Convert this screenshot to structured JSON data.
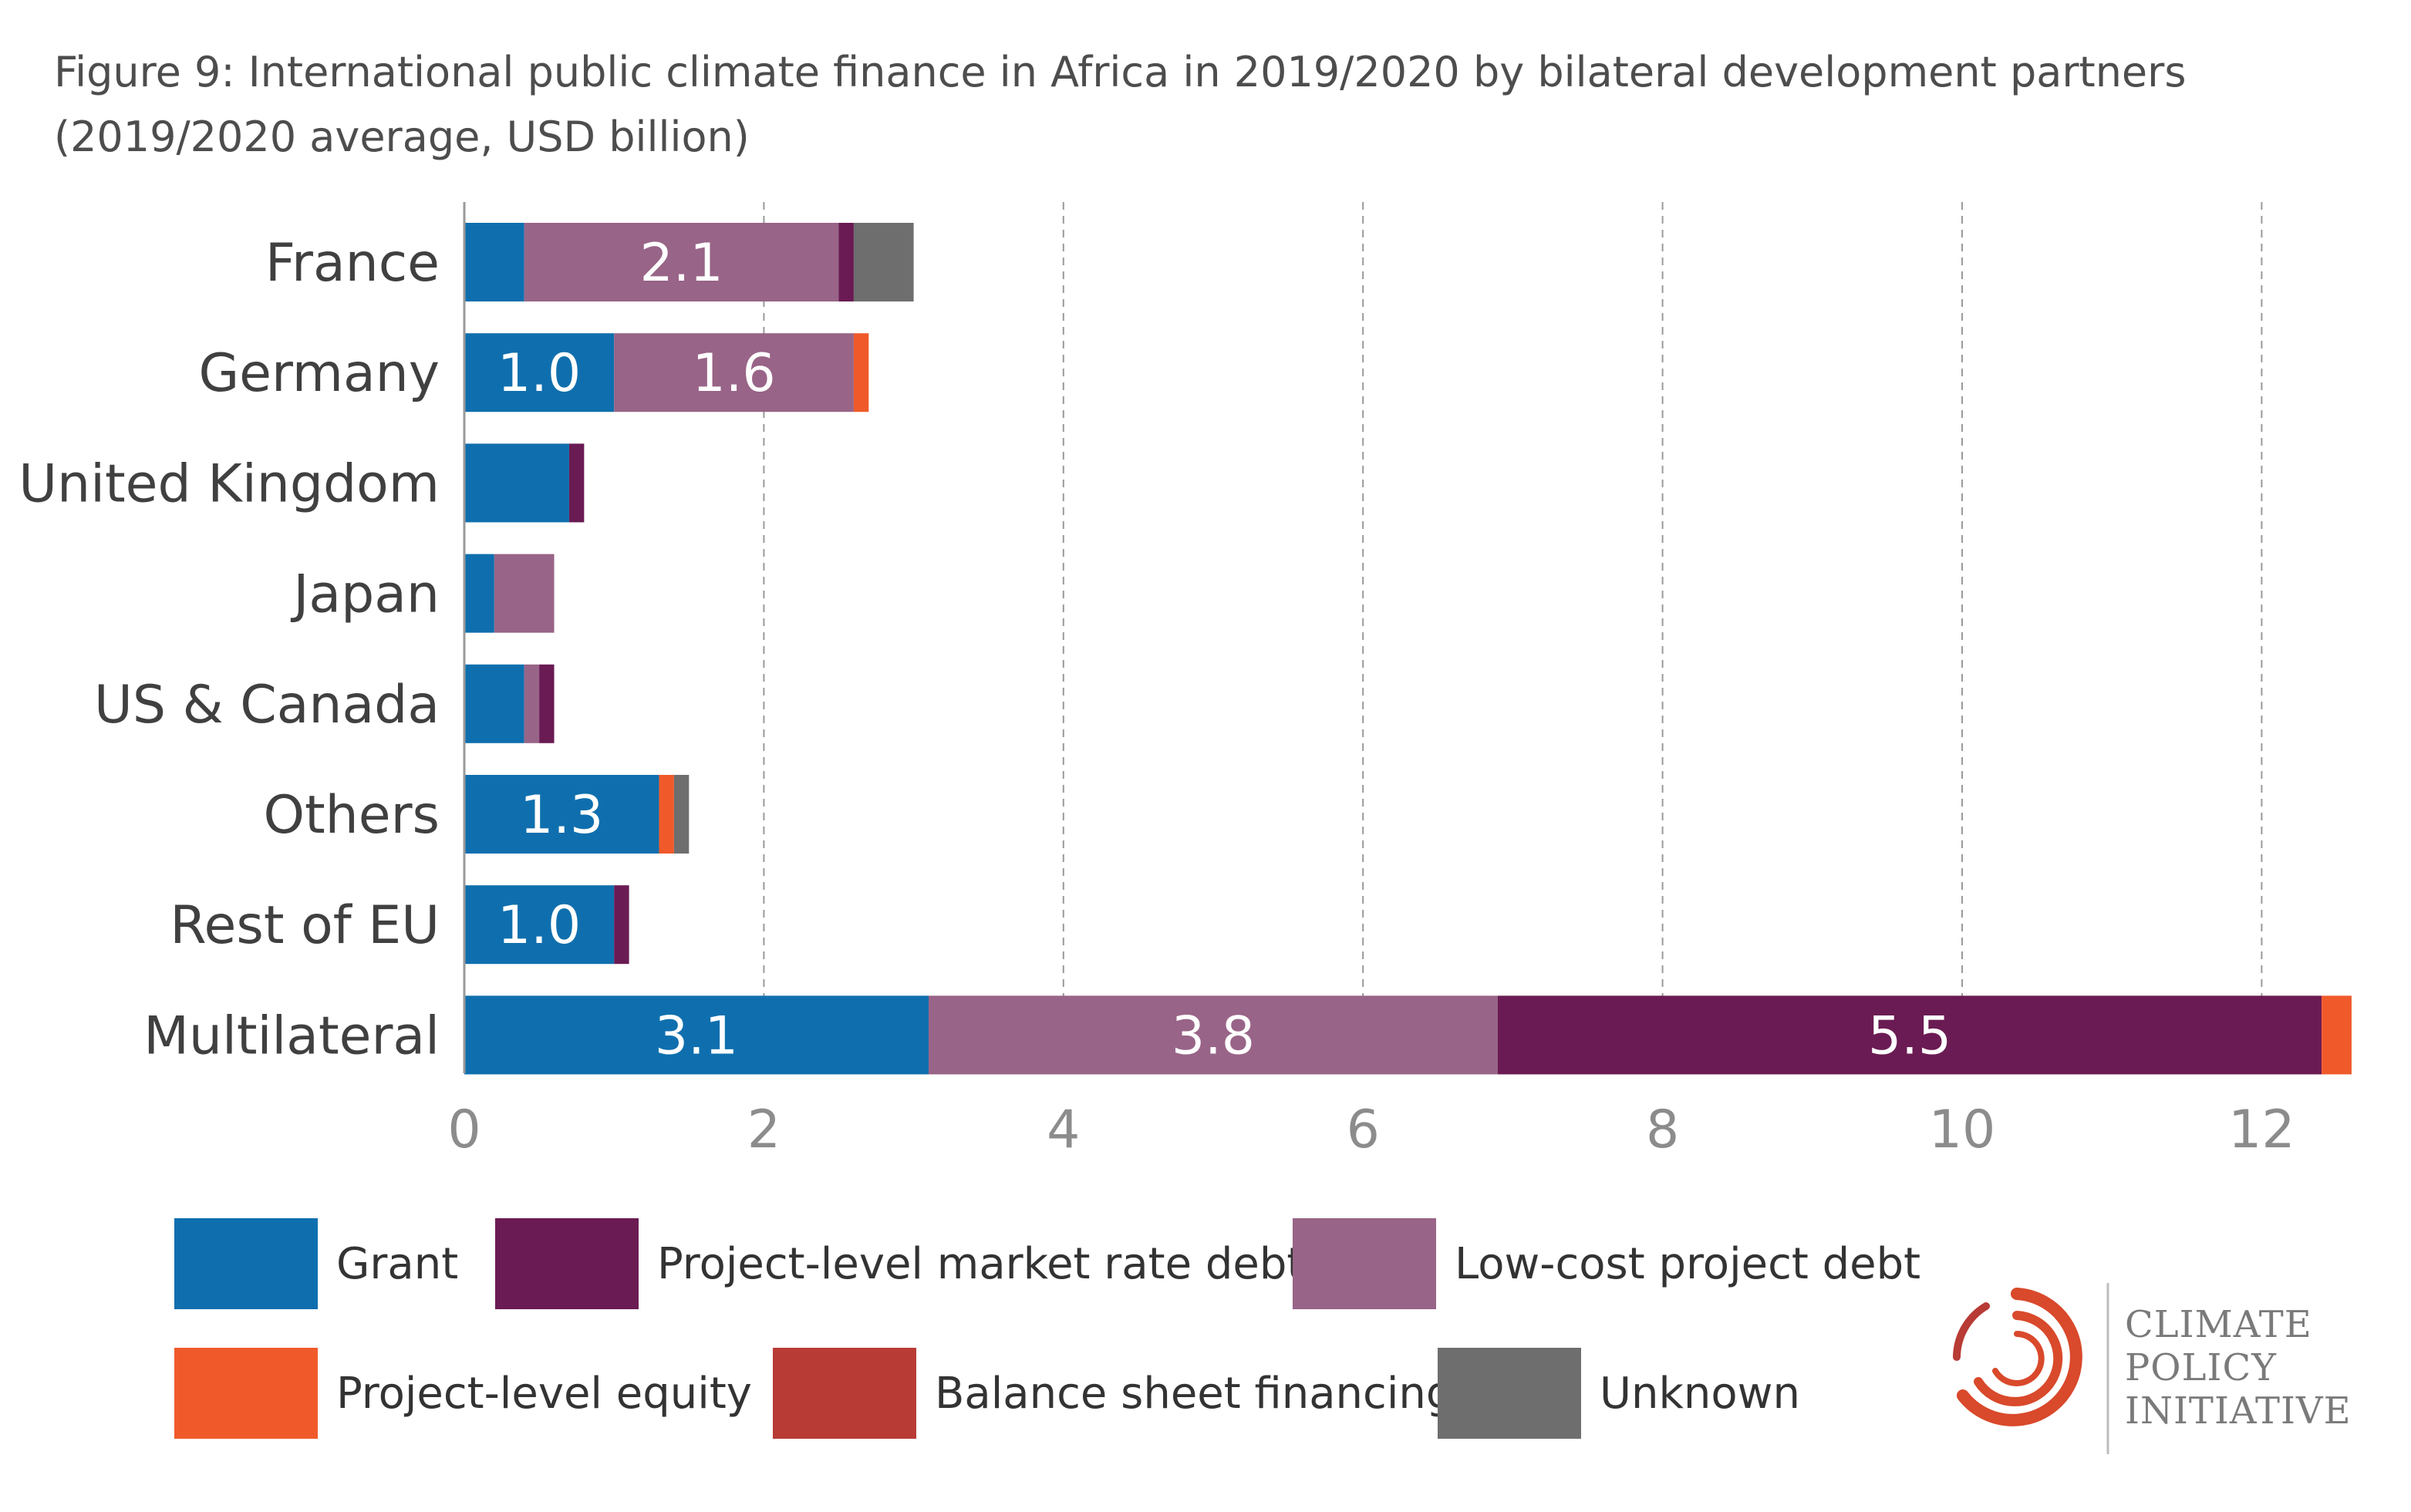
{
  "title_lines": [
    "Figure 9: International public climate finance in Africa in 2019/2020 by bilateral development partners",
    "(2019/2020 average, USD billion)"
  ],
  "logo": {
    "lines": [
      "CLIMATE",
      "POLICY",
      "INITIATIVE"
    ],
    "color": "#d9492b"
  },
  "chart_data": {
    "type": "bar",
    "orientation": "horizontal",
    "stacked": true,
    "categories": [
      "France",
      "Germany",
      "United Kingdom",
      "Japan",
      "US & Canada",
      "Others",
      "Rest of EU",
      "Multilateral"
    ],
    "xlim": [
      0,
      12.6
    ],
    "xticks": [
      0,
      2,
      4,
      6,
      8,
      10,
      12
    ],
    "grid": "vertical-dashed",
    "legend_position": "bottom",
    "series": [
      {
        "name": "Grant",
        "color": "#0f6fae",
        "values": [
          0.4,
          1.0,
          0.7,
          0.2,
          0.4,
          1.3,
          1.0,
          3.1
        ]
      },
      {
        "name": "Low-cost project debt",
        "color": "#986487",
        "values": [
          2.1,
          1.6,
          0.0,
          0.4,
          0.1,
          0.0,
          0.0,
          3.8
        ]
      },
      {
        "name": "Project-level market rate debt",
        "color": "#6a1b53",
        "values": [
          0.1,
          0.0,
          0.1,
          0.0,
          0.1,
          0.0,
          0.1,
          5.5
        ]
      },
      {
        "name": "Project-level equity",
        "color": "#f05a2b",
        "values": [
          0.0,
          0.1,
          0.0,
          0.0,
          0.0,
          0.1,
          0.0,
          0.2
        ]
      },
      {
        "name": "Balance sheet financing",
        "color": "#b83b35",
        "values": [
          0,
          0,
          0,
          0,
          0,
          0,
          0,
          0
        ]
      },
      {
        "name": "Unknown",
        "color": "#6e6e6e",
        "values": [
          0.4,
          0.0,
          0.0,
          0.0,
          0.0,
          0.1,
          0.0,
          0.0
        ]
      }
    ],
    "data_labels": [
      {
        "category": "France",
        "series": "Low-cost project debt",
        "text": "2.1"
      },
      {
        "category": "Germany",
        "series": "Grant",
        "text": "1.0"
      },
      {
        "category": "Germany",
        "series": "Low-cost project debt",
        "text": "1.6"
      },
      {
        "category": "Others",
        "series": "Grant",
        "text": "1.3"
      },
      {
        "category": "Rest of EU",
        "series": "Grant",
        "text": "1.0"
      },
      {
        "category": "Multilateral",
        "series": "Grant",
        "text": "3.1"
      },
      {
        "category": "Multilateral",
        "series": "Low-cost project debt",
        "text": "3.8"
      },
      {
        "category": "Multilateral",
        "series": "Project-level market rate debt",
        "text": "5.5"
      }
    ],
    "legend_order": [
      "Grant",
      "Project-level market rate debt",
      "Low-cost project debt",
      "Project-level equity",
      "Balance sheet financing",
      "Unknown"
    ]
  }
}
